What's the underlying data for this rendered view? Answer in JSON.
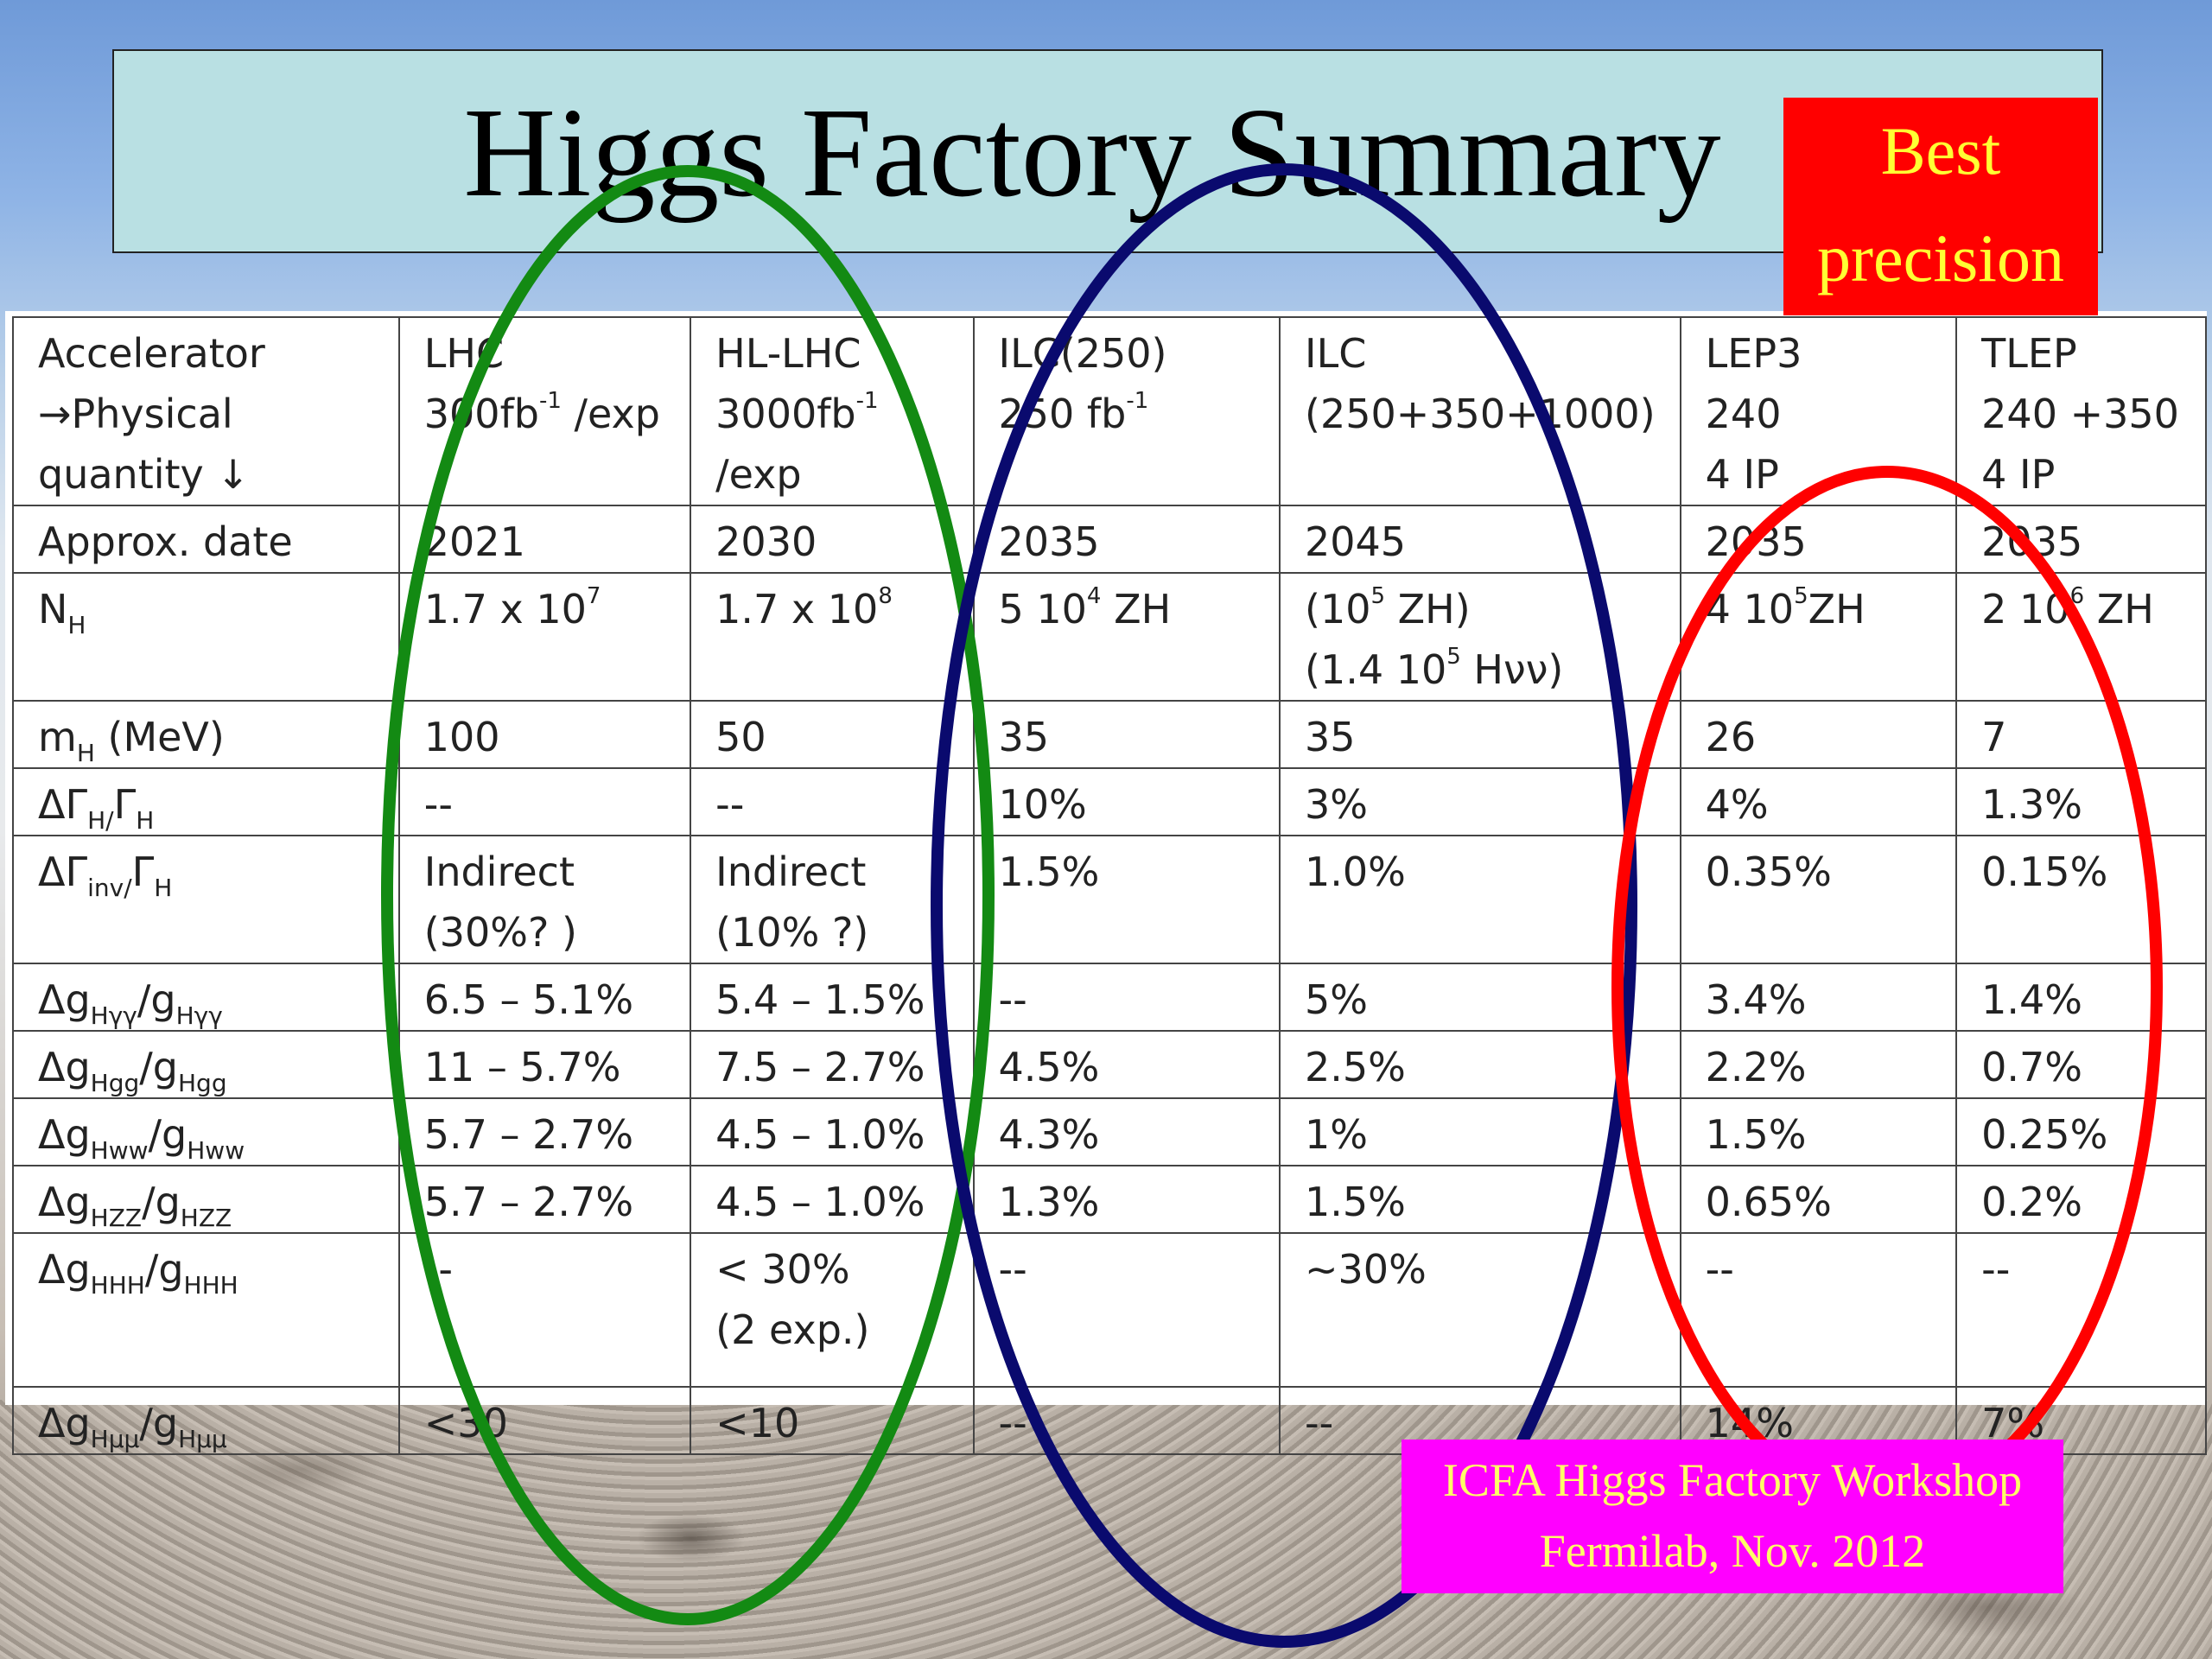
{
  "title": "Higgs Factory Summary",
  "badge": {
    "line1": "Best",
    "line2": "precision"
  },
  "footer": {
    "line1": "ICFA Higgs Factory Workshop",
    "line2": "Fermilab, Nov. 2012"
  },
  "colors": {
    "oval_green": "#138a13",
    "oval_blue": "#0a0a6e",
    "oval_red": "#ff0000",
    "badge_bg": "#ff0000",
    "badge_text": "#ffff33",
    "footer_bg": "#ff00ff",
    "title_bg": "#b9e0e3"
  },
  "table": {
    "header": {
      "label": {
        "line1": "Accelerator",
        "line2": "→Physical",
        "line3": "quantity ↓"
      },
      "lhc": {
        "name": "LHC",
        "lumi": "300fb",
        "lumi_sup": "-1",
        "lumi_suffix": " /exp"
      },
      "hllhc": {
        "name": "HL-LHC",
        "lumi": "3000fb",
        "lumi_sup": "-1",
        "line3": "/exp"
      },
      "ilc250": {
        "name": "ILC(250)",
        "lumi": "250 fb",
        "lumi_sup": "-1"
      },
      "ilc": {
        "name": "ILC",
        "line2": "(250+350+1000)"
      },
      "lep3": {
        "name": "LEP3",
        "line2": "240",
        "line3": "4 IP"
      },
      "tlep": {
        "name": "TLEP",
        "line2": "240 +350",
        "line3": "4 IP"
      }
    },
    "date": {
      "label": "Approx. date",
      "values": [
        "2021",
        "2030",
        "2035",
        "2045",
        "2035",
        "2035"
      ]
    },
    "nh": {
      "label_main": "N",
      "label_sub": "H",
      "lhc": {
        "base": "1.7 x 10",
        "exp": "7"
      },
      "hllhc": {
        "base": "1.7 x 10",
        "exp": "8"
      },
      "ilc250": {
        "base": "5 10",
        "exp": "4",
        "suffix": " ZH"
      },
      "ilc": {
        "l1_pre": "(10",
        "l1_exp": "5",
        "l1_suf": " ZH)",
        "l2_pre": "(1.4 10",
        "l2_exp": "5",
        "l2_suf": " Hνν)"
      },
      "lep3": {
        "base": "4 10",
        "exp": "5",
        "suffix": "ZH"
      },
      "tlep": {
        "base": "2 10",
        "exp": "6",
        "suffix": " ZH"
      }
    },
    "mh": {
      "label_main": "m",
      "label_sub": "H",
      "label_suffix": " (MeV)",
      "values": [
        "100",
        "50",
        "35",
        "35",
        "26",
        "7"
      ]
    },
    "gamma": {
      "label_main": "ΔΓ",
      "label_sub": "H/",
      "label_mid": "Γ",
      "label_sub2": "H",
      "values": [
        "--",
        "--",
        "10%",
        "3%",
        "4%",
        "1.3%"
      ]
    },
    "inv": {
      "label_main": "ΔΓ",
      "label_sub": "inv/",
      "label_mid": "Γ",
      "label_sub2": "H",
      "lhc": {
        "line1": "Indirect",
        "line2": "(30%? )"
      },
      "hllhc": {
        "line1": "Indirect",
        "line2": "(10% ?)"
      },
      "others": [
        "1.5%",
        "1.0%",
        "0.35%",
        "0.15%"
      ]
    },
    "gyy": {
      "label_main": "Δg",
      "label_sub": "Hγγ",
      "label_mid": "/g",
      "label_sub2": "Hγγ",
      "values": [
        "6.5 –  5.1%",
        "5.4 – 1.5%",
        "--",
        "5%",
        "3.4%",
        "1.4%"
      ]
    },
    "ggg": {
      "label_main": "Δg",
      "label_sub": "Hgg",
      "label_mid": "/g",
      "label_sub2": "Hgg",
      "values": [
        "11 –  5.7%",
        "7.5 –  2.7%",
        "4.5%",
        "2.5%",
        "2.2%",
        "0.7%"
      ]
    },
    "gww": {
      "label_main": "Δg",
      "label_sub": "Hww",
      "label_mid": "/g",
      "label_sub2": "Hww",
      "values": [
        "5.7 – 2.7%",
        "4.5 – 1.0%",
        "4.3%",
        "1%",
        "1.5%",
        "0.25%"
      ]
    },
    "gzz": {
      "label_main": "Δg",
      "label_sub": "HZZ",
      "label_mid": "/g",
      "label_sub2": "HZZ",
      "values": [
        "5.7 – 2.7%",
        "4.5 – 1.0%",
        "1.3%",
        "1.5%",
        "0.65%",
        "0.2%"
      ]
    },
    "ghhh": {
      "label_main": "Δg",
      "label_sub": "HHH",
      "label_mid": "/g",
      "label_sub2": "HHH",
      "lhc": "--",
      "hllhc": {
        "line1": "< 30%",
        "line2": "(2 exp.)"
      },
      "others": [
        "--",
        "~30%",
        "--",
        "--"
      ]
    },
    "gmumu": {
      "label_main": "Δg",
      "label_sub": "Hμμ",
      "label_mid": "/g",
      "label_sub2": "Hμμ",
      "values": [
        "<30",
        "<10",
        "--",
        "--",
        "14%",
        "7%"
      ]
    }
  }
}
